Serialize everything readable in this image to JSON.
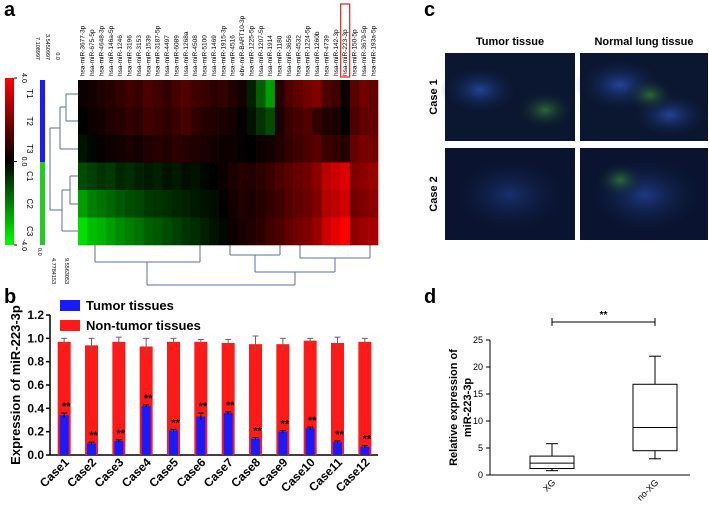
{
  "panels": [
    "a",
    "b",
    "c",
    "d"
  ],
  "panel_c": {
    "columns": [
      "Tumor tissue",
      "Normal lung tissue"
    ],
    "rows": [
      "Case 1",
      "Case 2"
    ]
  },
  "chart_data": [
    {
      "type": "heatmap",
      "columns": [
        "hsa-miR-3677-3p",
        "hsa-miR-675-5p",
        "hsa-miR-4648-3p",
        "hsa-miR-146a-5p",
        "hsa-miR-1246",
        "hsa-miR-3196",
        "hsa-miR-3153",
        "hsa-miR-1539",
        "hsa-miR-3187-5p",
        "hsa-miR-4497",
        "hsa-miR-6089",
        "hsa-miR-1268a",
        "hsa-miR-4508",
        "hsa-miR-5100",
        "hsa-miR-1469",
        "hsa-miR-1915-3p",
        "hsa-miR-4516",
        "ebv-miR-BART10-3p",
        "hsa-miR-1225-5p",
        "hsa-miR-1207-5p",
        "hsa-miR-1914",
        "hsa-miR-1180",
        "hsa-miR-3656",
        "hsa-miR-4532",
        "hsa-miR-1224-5p",
        "hsa-miR-1260b",
        "hsa-miR-4739",
        "hsa-miR-142-3p",
        "hsa-miR-223-3p",
        "hsa-miR-150-5p",
        "hsa-miR-3679-5p",
        "hsa-miR-193a-5p"
      ],
      "rows": [
        "T1",
        "T2",
        "T3",
        "C1",
        "C2",
        "C3"
      ],
      "values": [
        [
          0.2,
          0.3,
          0.5,
          0.6,
          0.8,
          1.0,
          0.9,
          1.2,
          1.0,
          0.8,
          1.1,
          1.3,
          1.0,
          0.9,
          0.7,
          0.8,
          0.5,
          0.3,
          -0.5,
          -1.5,
          -2.5,
          0.6,
          1.2,
          1.5,
          1.8,
          2.0,
          1.2,
          1.0,
          0.2,
          1.4,
          1.8,
          1.5
        ],
        [
          0,
          0.2,
          0.3,
          0.5,
          0.6,
          0.8,
          0.7,
          1.0,
          0.9,
          0.7,
          0.9,
          1.1,
          0.8,
          0.6,
          0.5,
          0.4,
          0.3,
          0.1,
          -0.3,
          -0.8,
          -1.2,
          0.4,
          0.9,
          1.1,
          1.3,
          0.8,
          0.5,
          0.4,
          0.1,
          1.2,
          1.5,
          1.6
        ],
        [
          -0.3,
          -0.1,
          0.1,
          0.2,
          0.3,
          0.4,
          0.3,
          0.5,
          0.6,
          0.5,
          0.7,
          0.6,
          0.5,
          0.4,
          0.3,
          0.2,
          0.2,
          0.1,
          0,
          0.2,
          0.3,
          0.5,
          0.8,
          1.0,
          1.2,
          1.4,
          0.9,
          0.8,
          0.6,
          1.6,
          1.9,
          1.8
        ],
        [
          -1.2,
          -1.0,
          -0.8,
          -0.9,
          -0.6,
          -0.7,
          -0.5,
          -0.4,
          -0.5,
          -0.3,
          -0.4,
          -0.2,
          -0.3,
          -0.1,
          0,
          0.2,
          0.4,
          0.6,
          0.5,
          0.7,
          0.9,
          1.2,
          1.4,
          1.6,
          1.8,
          2.2,
          3.0,
          3.2,
          3.5,
          2.0,
          2.2,
          2.4
        ],
        [
          -2.5,
          -2.0,
          -1.8,
          -1.6,
          -1.4,
          -1.2,
          -1.1,
          -0.9,
          -0.8,
          -0.7,
          -0.6,
          -0.5,
          -0.4,
          -0.3,
          -0.2,
          0,
          0.3,
          0.5,
          0.4,
          0.6,
          0.8,
          1.0,
          1.3,
          1.5,
          1.7,
          2.0,
          2.8,
          3.0,
          3.3,
          1.8,
          2.0,
          2.2
        ],
        [
          -3.5,
          -3.0,
          -2.8,
          -2.5,
          -2.2,
          -2.0,
          -1.8,
          -1.5,
          -1.4,
          -1.2,
          -1.0,
          -0.8,
          -0.7,
          -0.5,
          -0.3,
          -0.1,
          0.2,
          0.4,
          0.5,
          0.7,
          1.0,
          1.2,
          1.5,
          1.8,
          2.0,
          2.4,
          3.2,
          3.6,
          4.0,
          2.2,
          2.5,
          2.6
        ]
      ],
      "clim": [
        -4,
        4
      ],
      "cticks": [
        {
          "value": 4,
          "label": "4.0"
        },
        {
          "value": 0,
          "label": "0.0"
        },
        {
          "value": -4,
          "label": "-4.0"
        }
      ],
      "highlight": "hsa-miR-223-3p",
      "tree_labels": [
        "7.108997",
        "3.5450997",
        "0.0",
        "4.7784153",
        "9.5563053"
      ]
    },
    {
      "type": "bar",
      "ylabel": "Expression of miR-223-3p",
      "categories": [
        "Case1",
        "Case2",
        "Case3",
        "Case4",
        "Case5",
        "Case6",
        "Case7",
        "Case8",
        "Case9",
        "Case10",
        "Case11",
        "Case12"
      ],
      "series": [
        {
          "name": "Non-tumor tissues",
          "color": "#ff1a1a",
          "values": [
            0.97,
            0.94,
            0.97,
            0.93,
            0.97,
            0.97,
            0.96,
            0.95,
            0.95,
            0.98,
            0.96,
            0.97
          ],
          "errors": [
            0.03,
            0.06,
            0.04,
            0.07,
            0.03,
            0.02,
            0.03,
            0.07,
            0.05,
            0.02,
            0.05,
            0.03
          ]
        },
        {
          "name": "Tumor tissues",
          "color": "#1a1aff",
          "values": [
            0.34,
            0.1,
            0.12,
            0.42,
            0.21,
            0.33,
            0.36,
            0.14,
            0.2,
            0.23,
            0.11,
            0.07
          ],
          "errors": [
            0.02,
            0.01,
            0.01,
            0.01,
            0.01,
            0.03,
            0.01,
            0.01,
            0.01,
            0.01,
            0.01,
            0.01
          ],
          "value_annotations": [
            "**",
            "**",
            "**",
            "**",
            "**",
            "**",
            "**",
            "**",
            "**",
            "**",
            "**",
            "**"
          ]
        }
      ],
      "ylim": [
        0,
        1.2
      ],
      "yticks": [
        {
          "value": 0,
          "label": "0.0"
        },
        0.2,
        0.4,
        0.6,
        0.8,
        {
          "value": 1,
          "label": "1.0"
        },
        1.2
      ]
    },
    {
      "type": "box",
      "ylabel": [
        "Relative expression of",
        "miR-223-3p"
      ],
      "categories": [
        "XG",
        "no-XG"
      ],
      "boxes": [
        {
          "min": 0.8,
          "q1": 1.2,
          "median": 2.2,
          "q3": 3.5,
          "max": 5.8
        },
        {
          "min": 3.0,
          "q1": 4.5,
          "median": 8.8,
          "q3": 16.8,
          "max": 22.0
        }
      ],
      "ylim": [
        0,
        25
      ],
      "yticks": [
        0,
        5,
        10,
        15,
        20,
        25
      ],
      "annotation": "**"
    }
  ]
}
